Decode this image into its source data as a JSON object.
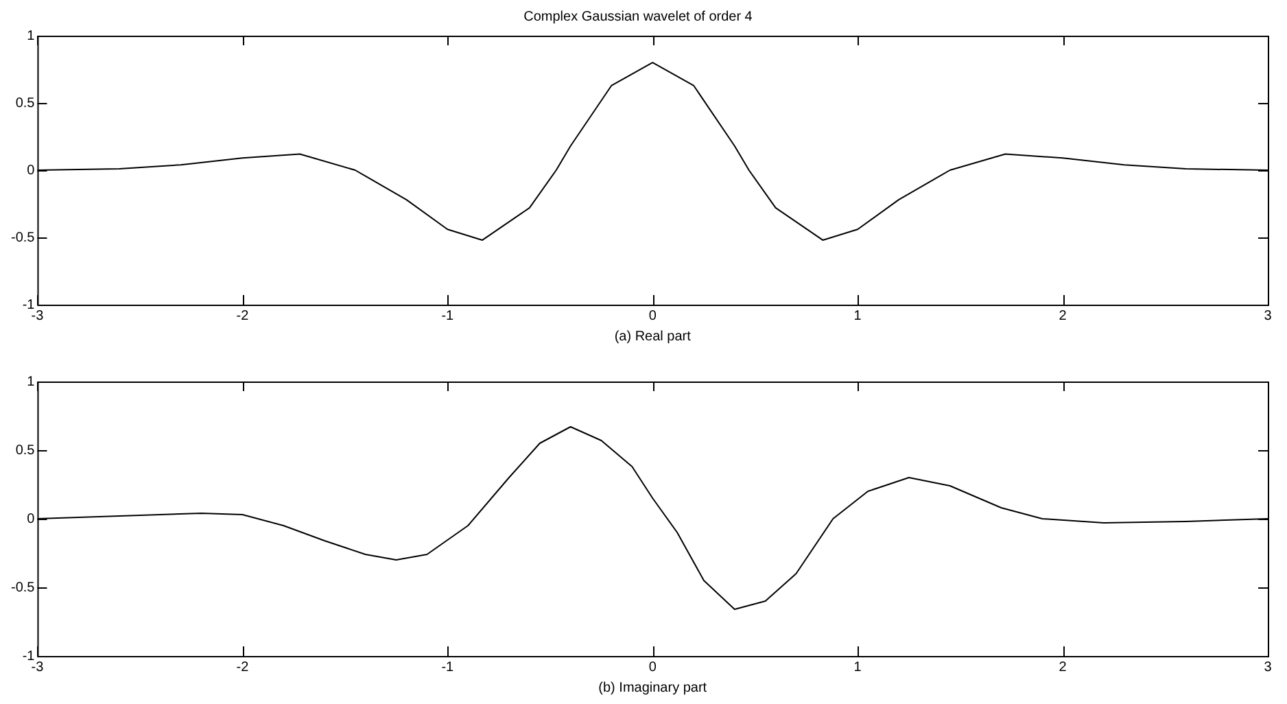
{
  "chart_data": [
    {
      "type": "line",
      "title": "Complex Gaussian wavelet of order 4",
      "xlabel": "(a) Real part",
      "x": [
        -3,
        -2.6,
        -2.3,
        -2.0,
        -1.72,
        -1.45,
        -1.2,
        -1.0,
        -0.83,
        -0.6,
        -0.47,
        -0.4,
        -0.2,
        0,
        0.2,
        0.4,
        0.47,
        0.6,
        0.83,
        1.0,
        1.2,
        1.45,
        1.72,
        2.0,
        2.3,
        2.6,
        3
      ],
      "series": [
        {
          "color": "#000000",
          "values": [
            0,
            0.01,
            0.04,
            0.09,
            0.12,
            0,
            -0.22,
            -0.44,
            -0.52,
            -0.28,
            0,
            0.18,
            0.63,
            0.8,
            0.63,
            0.18,
            0,
            -0.28,
            -0.52,
            -0.44,
            -0.22,
            0,
            0.12,
            0.09,
            0.04,
            0.01,
            0
          ]
        }
      ],
      "xlim": [
        -3,
        3
      ],
      "xticks": [
        -3,
        -2,
        -1,
        0,
        1,
        2,
        3
      ],
      "ylim": [
        -1,
        1
      ],
      "yticks": [
        -1,
        -0.5,
        0,
        0.5,
        1
      ],
      "grid": false,
      "legend": false,
      "marker": "none",
      "line_style": "solid"
    },
    {
      "type": "line",
      "xlabel": "(b) Imaginary part",
      "x": [
        -3,
        -2.6,
        -2.2,
        -2.0,
        -1.8,
        -1.6,
        -1.4,
        -1.25,
        -1.1,
        -0.9,
        -0.7,
        -0.55,
        -0.4,
        -0.25,
        -0.1,
        0,
        0.12,
        0.25,
        0.4,
        0.55,
        0.7,
        0.88,
        1.05,
        1.25,
        1.45,
        1.7,
        1.9,
        2.2,
        2.6,
        3
      ],
      "series": [
        {
          "color": "#000000",
          "values": [
            0,
            0.02,
            0.04,
            0.03,
            -0.05,
            -0.16,
            -0.26,
            -0.3,
            -0.26,
            -0.05,
            0.3,
            0.55,
            0.67,
            0.57,
            0.38,
            0.15,
            -0.1,
            -0.45,
            -0.66,
            -0.6,
            -0.4,
            0,
            0.2,
            0.3,
            0.24,
            0.08,
            0,
            -0.03,
            -0.02,
            0
          ]
        }
      ],
      "xlim": [
        -3,
        3
      ],
      "xticks": [
        -3,
        -2,
        -1,
        0,
        1,
        2,
        3
      ],
      "ylim": [
        -1,
        1
      ],
      "yticks": [
        -1,
        -0.5,
        0,
        0.5,
        1
      ],
      "grid": false,
      "legend": false,
      "marker": "none",
      "line_style": "solid"
    }
  ]
}
